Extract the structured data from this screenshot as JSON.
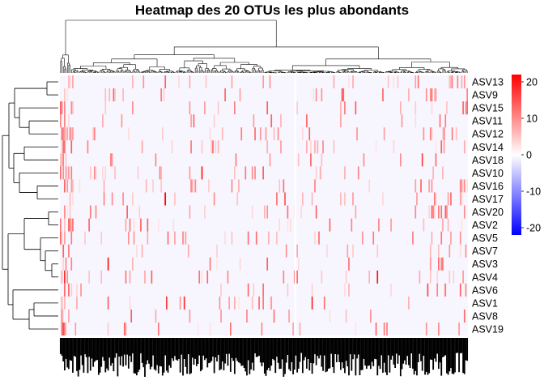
{
  "chart_data": {
    "type": "heatmap",
    "title": "Heatmap des 20 OTUs les plus abondants",
    "rows": [
      "ASV13",
      "ASV9",
      "ASV15",
      "ASV11",
      "ASV12",
      "ASV14",
      "ASV18",
      "ASV10",
      "ASV16",
      "ASV17",
      "ASV20",
      "ASV2",
      "ASV5",
      "ASV7",
      "ASV3",
      "ASV4",
      "ASV6",
      "ASV1",
      "ASV8",
      "ASV19"
    ],
    "column_count": 300,
    "color_scale": {
      "min": -22,
      "max": 22,
      "ticks": [
        20,
        10,
        0,
        -10,
        -20
      ],
      "low_color": "#0000ff",
      "mid_color": "#ffffff",
      "high_color": "#ff0000"
    },
    "row_dendrogram": true,
    "column_dendrogram": true
  }
}
